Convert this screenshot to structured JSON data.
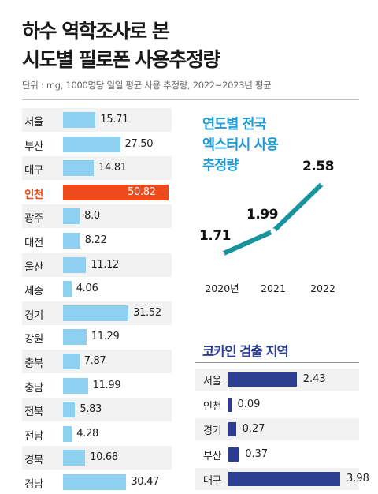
{
  "title": {
    "line1": "하수 역학조사로 본",
    "line2": "시도별 필로폰 사용추정량"
  },
  "unit_note": "단위 : mg, 1000명당 일일 평균 사용 추정량, 2022~2023년 평균",
  "colors": {
    "bar": "#8ed0f0",
    "highlight": "#ef4a1b",
    "line": "#16939b",
    "cocaine_bar": "#2b3e8f",
    "subtitle": "#1d9bd7"
  },
  "chart_data": [
    {
      "type": "bar",
      "orientation": "horizontal",
      "categories": [
        "서울",
        "부산",
        "대구",
        "인천",
        "광주",
        "대전",
        "울산",
        "세종",
        "경기",
        "강원",
        "충북",
        "충남",
        "전북",
        "전남",
        "경북",
        "경남"
      ],
      "values": [
        15.71,
        27.5,
        14.81,
        50.82,
        8.0,
        8.22,
        11.12,
        4.06,
        31.52,
        11.29,
        7.87,
        11.99,
        5.83,
        4.28,
        10.68,
        30.47
      ],
      "labels": [
        "15.71",
        "27.50",
        "14.81",
        "50.82",
        "8.0",
        "8.22",
        "11.12",
        "4.06",
        "31.52",
        "11.29",
        "7.87",
        "11.99",
        "5.83",
        "4.28",
        "10.68",
        "30.47"
      ],
      "highlight": "인천",
      "xlim": [
        0,
        50.82
      ]
    },
    {
      "type": "line",
      "title_lines": [
        "연도별 전국",
        "엑스터시 사용",
        "추정량"
      ],
      "x": [
        "2020년",
        "2021",
        "2022"
      ],
      "values": [
        1.71,
        1.99,
        2.58
      ],
      "labels": [
        "1.71",
        "1.99",
        "2.58"
      ]
    },
    {
      "type": "bar",
      "orientation": "horizontal",
      "title": "코카인 검출 지역",
      "categories": [
        "서울",
        "인천",
        "경기",
        "부산",
        "대구"
      ],
      "values": [
        2.43,
        0.09,
        0.27,
        0.37,
        3.98
      ],
      "labels": [
        "2.43",
        "0.09",
        "0.27",
        "0.37",
        "3.98"
      ]
    }
  ]
}
